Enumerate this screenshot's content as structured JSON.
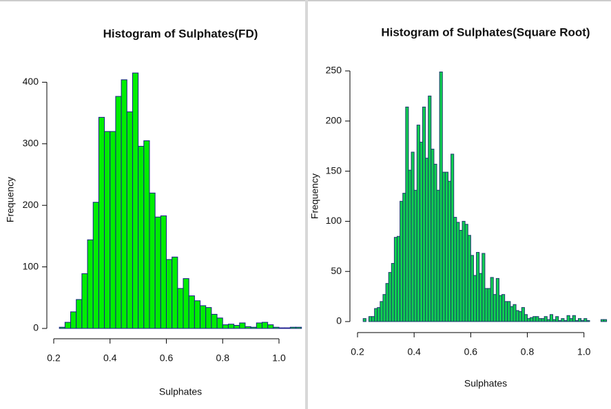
{
  "chart_data": [
    {
      "type": "histogram",
      "title": "Histogram of Sulphates(FD)",
      "xlabel": "Sulphates",
      "ylabel": "Frequency",
      "bins": [
        0.22,
        0.24,
        0.26,
        0.28,
        0.3,
        0.32,
        0.34,
        0.36,
        0.38,
        0.4,
        0.42,
        0.44,
        0.46,
        0.48,
        0.5,
        0.52,
        0.54,
        0.56,
        0.58,
        0.6,
        0.62,
        0.64,
        0.66,
        0.68,
        0.7,
        0.72,
        0.74,
        0.76,
        0.78,
        0.8,
        0.82,
        0.84,
        0.86,
        0.88,
        0.9,
        0.92,
        0.94,
        0.96,
        0.98,
        1.0,
        1.02,
        1.04,
        1.06,
        1.08
      ],
      "values": [
        2,
        10,
        27,
        47,
        89,
        144,
        205,
        343,
        320,
        320,
        377,
        404,
        352,
        415,
        296,
        305,
        220,
        181,
        183,
        112,
        116,
        65,
        81,
        53,
        45,
        37,
        34,
        23,
        17,
        6,
        7,
        5,
        9,
        3,
        2,
        9,
        10,
        6,
        2,
        1,
        1,
        2,
        2
      ],
      "color": "#00ee00",
      "edgecolor": "#1a1a8c",
      "xlim": [
        0.2,
        1.08
      ],
      "xticks": [
        0.2,
        0.4,
        0.6,
        0.8,
        {
          "value": 1,
          "label": "1.0"
        }
      ],
      "ylim": [
        0,
        415
      ],
      "yticks": [
        0,
        100,
        200,
        300,
        400
      ]
    },
    {
      "type": "histogram",
      "title": "Histogram of Sulphates(Square Root)",
      "xlabel": "Sulphates",
      "ylabel": "Frequency",
      "bins": [
        0.22,
        0.23,
        0.24,
        0.25,
        0.26,
        0.27,
        0.28,
        0.29,
        0.3,
        0.31,
        0.32,
        0.33,
        0.34,
        0.35,
        0.36,
        0.37,
        0.38,
        0.39,
        0.4,
        0.41,
        0.42,
        0.43,
        0.44,
        0.45,
        0.46,
        0.47,
        0.48,
        0.49,
        0.5,
        0.51,
        0.52,
        0.53,
        0.54,
        0.55,
        0.56,
        0.57,
        0.58,
        0.59,
        0.6,
        0.61,
        0.62,
        0.63,
        0.64,
        0.65,
        0.66,
        0.67,
        0.68,
        0.69,
        0.7,
        0.71,
        0.72,
        0.73,
        0.74,
        0.75,
        0.76,
        0.77,
        0.78,
        0.79,
        0.8,
        0.81,
        0.82,
        0.83,
        0.84,
        0.85,
        0.86,
        0.87,
        0.88,
        0.89,
        0.9,
        0.91,
        0.92,
        0.93,
        0.94,
        0.95,
        0.96,
        0.97,
        0.98,
        0.99,
        1.0,
        1.01,
        1.02,
        1.03,
        1.04,
        1.05,
        1.06,
        1.07,
        1.08
      ],
      "values": [
        3,
        0,
        5,
        5,
        13,
        14,
        20,
        27,
        38,
        49,
        58,
        84,
        85,
        120,
        128,
        214,
        151,
        169,
        131,
        196,
        179,
        214,
        163,
        225,
        172,
        157,
        131,
        249,
        149,
        149,
        140,
        167,
        104,
        99,
        91,
        100,
        97,
        86,
        66,
        46,
        69,
        48,
        68,
        33,
        33,
        44,
        27,
        43,
        26,
        27,
        20,
        20,
        15,
        17,
        11,
        10,
        14,
        7,
        3,
        4,
        5,
        5,
        3,
        3,
        5,
        2,
        7,
        2,
        5,
        1,
        3,
        1,
        6,
        3,
        6,
        1,
        3,
        1,
        3,
        1,
        0,
        0,
        0,
        0,
        2,
        2
      ],
      "color": "#10d050",
      "edgecolor": "#1a3a6c",
      "xlim": [
        0.2,
        1.08
      ],
      "xticks": [
        0.2,
        0.4,
        0.6,
        0.8,
        {
          "value": 1,
          "label": "1.0"
        }
      ],
      "ylim": [
        0,
        250
      ],
      "yticks": [
        0,
        50,
        100,
        150,
        200,
        250
      ]
    }
  ]
}
